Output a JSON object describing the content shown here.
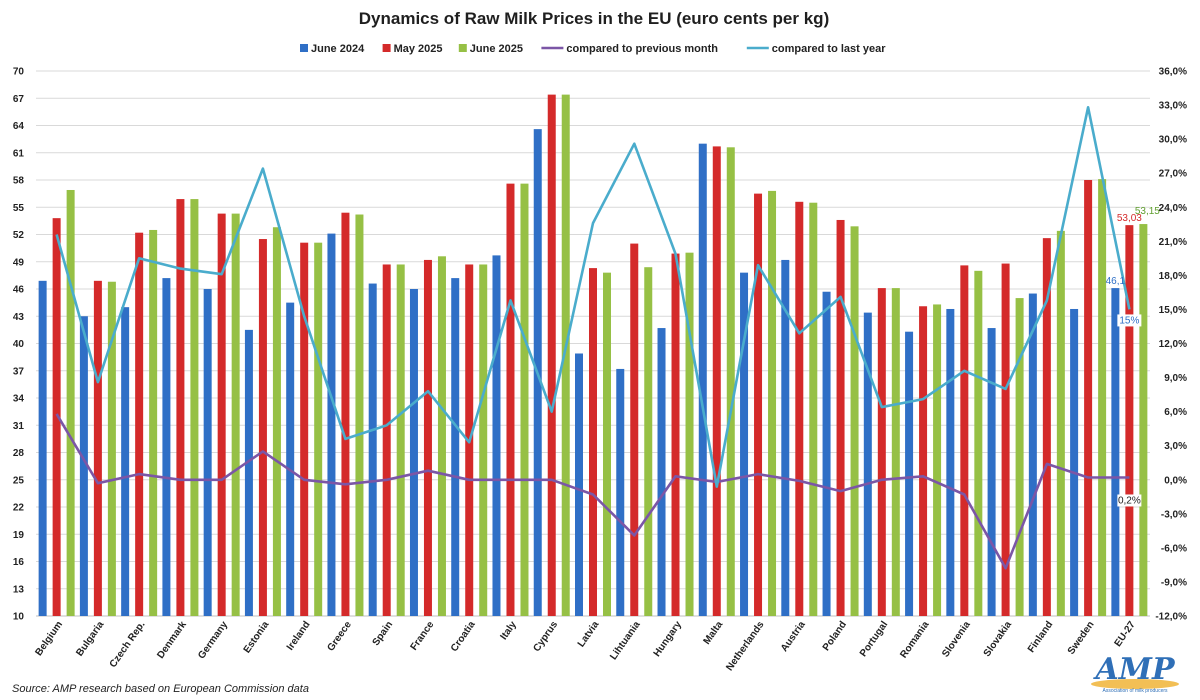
{
  "chart_data": {
    "type": "bar",
    "title": "Dynamics of Raw Milk Prices in the EU (euro cents per kg)",
    "source": "Source: AMP research based on European Commission data",
    "logo": {
      "text": "AMP",
      "subtitle": "Association of milk producers"
    },
    "categories": [
      "Belgium",
      "Bulgaria",
      "Czech Rep.",
      "Denmark",
      "Germany",
      "Estonia",
      "Ireland",
      "Greece",
      "Spain",
      "France",
      "Croatia",
      "Italy",
      "Cyprus",
      "Latvia",
      "Lihtuania",
      "Hungary",
      "Malta",
      "Netherlands",
      "Austria",
      "Poland",
      "Portugal",
      "Romania",
      "Slovenia",
      "Slovakia",
      "Finland",
      "Sweden",
      "EU-27"
    ],
    "y_left": {
      "min": 10,
      "max": 70,
      "ticks": [
        "70",
        "67",
        "64",
        "61",
        "58",
        "55",
        "52",
        "49",
        "46",
        "43",
        "40",
        "37",
        "34",
        "31",
        "28",
        "25",
        "22",
        "19",
        "16",
        "13",
        "10"
      ]
    },
    "y_right": {
      "min": -12,
      "max": 36,
      "ticks": [
        "36,0%",
        "33,0%",
        "30,0%",
        "27,0%",
        "24,0%",
        "21,0%",
        "18,0%",
        "15,0%",
        "12,0%",
        "9,0%",
        "6,0%",
        "3,0%",
        "0,0%",
        "-3,0%",
        "-6,0%",
        "-9,0%",
        "-12,0%"
      ]
    },
    "gridlines": true,
    "legend_position": "top",
    "series": [
      {
        "name": "June 2024",
        "kind": "bar",
        "axis": "left",
        "color": "#2f6fc6",
        "values": [
          46.9,
          43.0,
          44.0,
          47.2,
          46.0,
          41.5,
          44.5,
          52.1,
          46.6,
          46.0,
          47.2,
          49.7,
          63.6,
          38.9,
          37.2,
          41.7,
          62.0,
          47.8,
          49.2,
          45.7,
          43.4,
          41.3,
          43.8,
          41.7,
          45.5,
          43.8,
          46.1
        ]
      },
      {
        "name": "May 2025",
        "kind": "bar",
        "axis": "left",
        "color": "#d42a2a",
        "values": [
          53.8,
          46.9,
          52.2,
          55.9,
          54.3,
          51.5,
          51.1,
          54.4,
          48.7,
          49.2,
          48.7,
          57.6,
          67.4,
          48.3,
          51.0,
          49.9,
          61.7,
          56.5,
          55.6,
          53.6,
          46.1,
          44.1,
          48.6,
          48.8,
          51.6,
          58.0,
          53.03
        ]
      },
      {
        "name": "June 2025",
        "kind": "bar",
        "axis": "left",
        "color": "#96c045",
        "values": [
          56.9,
          46.8,
          52.5,
          55.9,
          54.3,
          52.8,
          51.1,
          54.2,
          48.7,
          49.6,
          48.7,
          57.6,
          67.4,
          47.8,
          48.4,
          50.0,
          61.6,
          56.8,
          55.5,
          52.9,
          46.1,
          44.3,
          48.0,
          45.0,
          52.4,
          58.1,
          53.15
        ]
      },
      {
        "name": "compared to previous month",
        "kind": "line",
        "axis": "right",
        "color": "#7b56a6",
        "values": [
          5.8,
          -0.3,
          0.5,
          0.0,
          0.0,
          2.5,
          0.0,
          -0.4,
          0.0,
          0.8,
          0.0,
          0.0,
          0.0,
          -1.3,
          -4.9,
          0.3,
          -0.2,
          0.5,
          -0.1,
          -1.0,
          0.0,
          0.3,
          -1.3,
          -7.8,
          1.4,
          0.2,
          0.2
        ]
      },
      {
        "name": "compared to last year",
        "kind": "line",
        "axis": "right",
        "color": "#4aaccc",
        "values": [
          21.6,
          8.6,
          19.5,
          18.6,
          18.1,
          27.4,
          14.4,
          3.6,
          4.8,
          7.8,
          3.3,
          15.8,
          6.0,
          22.6,
          29.6,
          19.9,
          -0.6,
          18.9,
          12.9,
          16.1,
          6.4,
          7.1,
          9.6,
          8.0,
          15.8,
          32.8,
          15.0
        ]
      }
    ],
    "data_labels": [
      {
        "series": "June 2024",
        "category": "EU-27",
        "text": "46,1",
        "color": "#2f6fc6"
      },
      {
        "series": "May 2025",
        "category": "EU-27",
        "text": "53,03",
        "color": "#d42a2a"
      },
      {
        "series": "June 2025",
        "category": "EU-27",
        "text": "53,15",
        "color": "#5f9e2e"
      },
      {
        "series": "compared to last year",
        "category": "EU-27",
        "text": "15%",
        "color": "#2f6fc6"
      },
      {
        "series": "compared to previous month",
        "category": "EU-27",
        "text": "0,2%",
        "color": "#222222"
      }
    ]
  }
}
